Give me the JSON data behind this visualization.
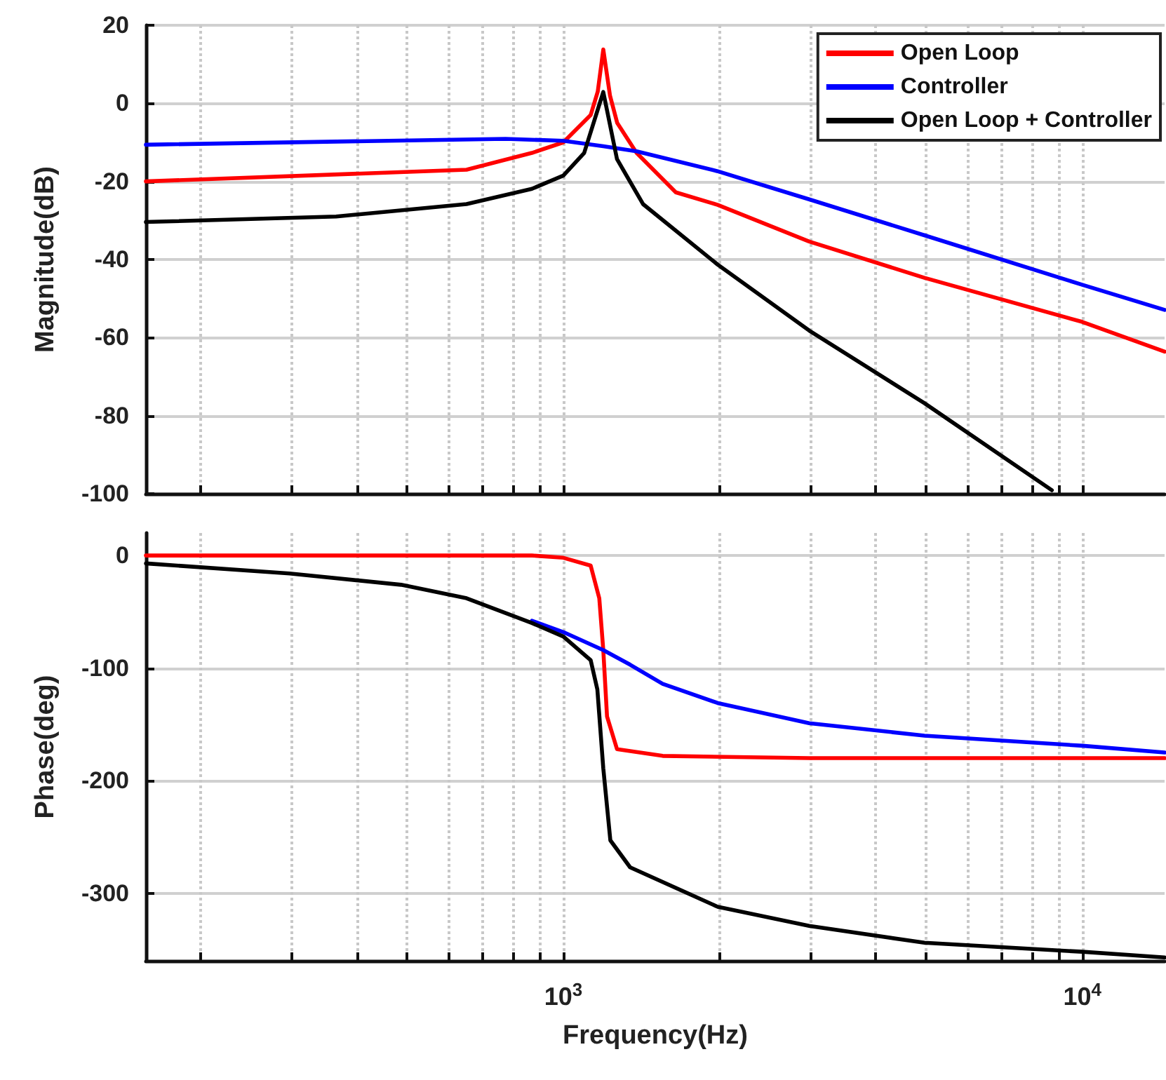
{
  "chart_data": [
    {
      "type": "line",
      "ylabel": "Magnitude(dB)",
      "xlim": [
        157,
        14400
      ],
      "ylim": [
        -100,
        20
      ],
      "yticks": [
        -100,
        -80,
        -60,
        -40,
        -20,
        0,
        20
      ],
      "log": "x",
      "grid": true,
      "legend": "top right",
      "marker": "none",
      "line_style": "solid",
      "tick_labels": "y",
      "xticks": [
        {
          "value": 200,
          "label": null
        },
        {
          "value": 300,
          "label": null
        },
        {
          "value": 400,
          "label": null
        },
        {
          "value": 500,
          "label": null
        },
        {
          "value": 600,
          "label": null
        },
        {
          "value": 700,
          "label": null
        },
        {
          "value": 800,
          "label": null
        },
        {
          "value": 900,
          "label": null
        },
        {
          "value": 1000,
          "label": null
        },
        {
          "value": 2000,
          "label": null
        },
        {
          "value": 3000,
          "label": null
        },
        {
          "value": 4000,
          "label": null
        },
        {
          "value": 5000,
          "label": null
        },
        {
          "value": 6000,
          "label": null
        },
        {
          "value": 7000,
          "label": null
        },
        {
          "value": 8000,
          "label": null
        },
        {
          "value": 9000,
          "label": null
        },
        {
          "value": 10000,
          "label": null
        }
      ],
      "series": [
        {
          "name": "Open Loop",
          "color": "#ff0000",
          "x": [
            157,
            651,
            870,
            1000,
            1129,
            1165,
            1194,
            1230,
            1270,
            1384,
            1647,
            1983,
            2976,
            4962,
            10000,
            14400
          ],
          "values": [
            -20,
            -17,
            -12.7,
            -10,
            -3,
            3,
            13.8,
            2,
            -5,
            -12.7,
            -22.8,
            -26,
            -35.4,
            -44.7,
            -56,
            -63.6
          ]
        },
        {
          "name": "Controller",
          "color": "#0000ff",
          "x": [
            157,
            774,
            1000,
            1194,
            1384,
            1983,
            2976,
            4962,
            10000,
            14400
          ],
          "values": [
            -10.6,
            -9.1,
            -9.6,
            -11,
            -12.3,
            -17.4,
            -24.6,
            -33.8,
            -46.5,
            -52.9
          ]
        },
        {
          "name": "Open Loop + Controller",
          "color": "#000000",
          "x": [
            157,
            365,
            651,
            870,
            1000,
            1097,
            1194,
            1269,
            1424,
            1983,
            2976,
            4962,
            8733
          ],
          "values": [
            -30.4,
            -29,
            -25.8,
            -21.9,
            -18.5,
            -12.7,
            2.9,
            -14.3,
            -25.8,
            -41.3,
            -58.2,
            -76.8,
            -99.1
          ]
        }
      ]
    },
    {
      "type": "line",
      "xlabel": "Frequency(Hz)",
      "ylabel": "Phase(deg)",
      "xlim": [
        157,
        14400
      ],
      "ylim": [
        -360,
        20
      ],
      "yticks": [
        -300,
        -200,
        -100,
        0
      ],
      "log": "x",
      "grid": true,
      "marker": "none",
      "line_style": "solid",
      "xticks": [
        {
          "value": 200,
          "label": null
        },
        {
          "value": 300,
          "label": null
        },
        {
          "value": 400,
          "label": null
        },
        {
          "value": 500,
          "label": null
        },
        {
          "value": 600,
          "label": null
        },
        {
          "value": 700,
          "label": null
        },
        {
          "value": 800,
          "label": null
        },
        {
          "value": 900,
          "label": null
        },
        {
          "value": 1000,
          "label": "10$^{3}$"
        },
        {
          "value": 2000,
          "label": null
        },
        {
          "value": 3000,
          "label": null
        },
        {
          "value": 4000,
          "label": null
        },
        {
          "value": 5000,
          "label": null
        },
        {
          "value": 6000,
          "label": null
        },
        {
          "value": 7000,
          "label": null
        },
        {
          "value": 8000,
          "label": null
        },
        {
          "value": 9000,
          "label": null
        },
        {
          "value": 10000,
          "label": "10$^{4}$"
        }
      ],
      "series": [
        {
          "color": "#ff0000",
          "x": [
            157,
            870,
            1000,
            1129,
            1173,
            1194,
            1214,
            1269,
            1554,
            2976,
            14400
          ],
          "values": [
            0,
            0,
            -2,
            -9,
            -38,
            -84,
            -143,
            -172,
            -178,
            -180,
            -180
          ]
        },
        {
          "color": "#0000ff",
          "x": [
            870,
            1000,
            1194,
            1345,
            1554,
            1983,
            2976,
            4962,
            10000,
            14400
          ],
          "values": [
            -58,
            -68,
            -84,
            -97,
            -114,
            -131,
            -149,
            -160,
            -169,
            -175
          ]
        },
        {
          "color": "#000000",
          "x": [
            157,
            297,
            487,
            651,
            870,
            1000,
            1129,
            1163,
            1194,
            1232,
            1345,
            1983,
            2976,
            4962,
            10000,
            14400
          ],
          "values": [
            -7,
            -16,
            -26,
            -38,
            -60,
            -72,
            -93,
            -119,
            -189,
            -253,
            -277,
            -312,
            -329,
            -344,
            -352,
            -357
          ]
        }
      ]
    }
  ]
}
